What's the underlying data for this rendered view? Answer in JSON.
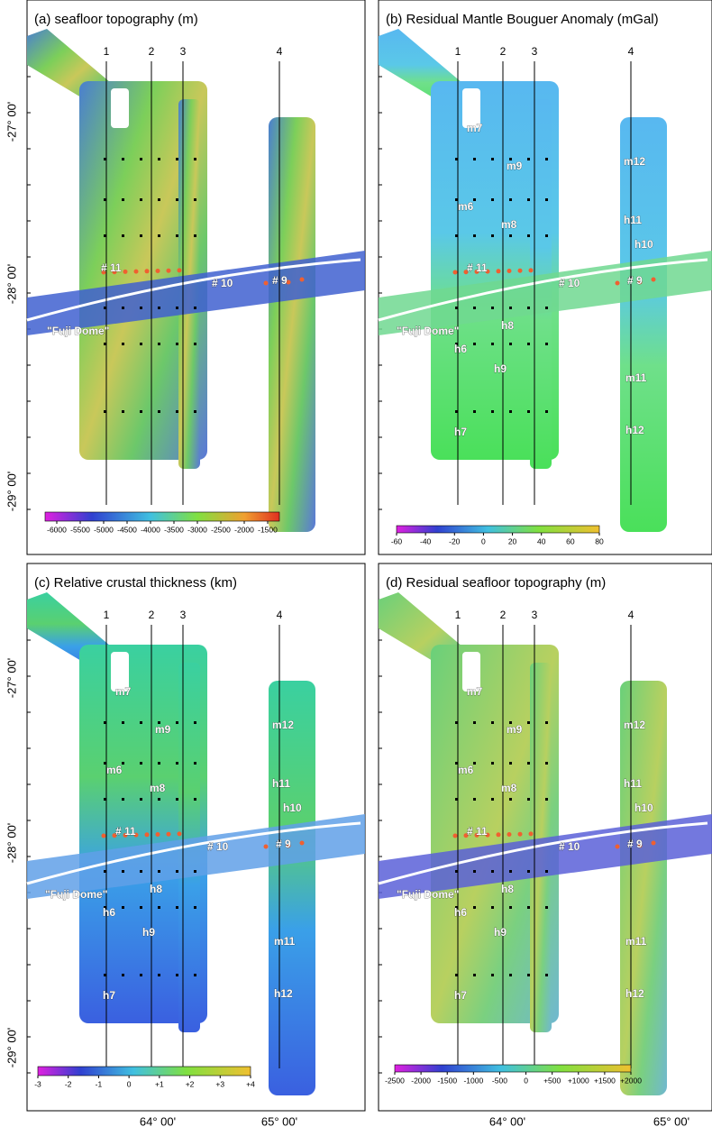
{
  "panels": [
    {
      "title": "(a)  seafloor topography (m)",
      "profiles": [
        "1",
        "2",
        "3",
        "4"
      ],
      "features": [
        "# 11",
        "# 10",
        "# 9",
        "\"Fuji Dome\""
      ],
      "colorbar_ticks": [
        -6000,
        -5500,
        -5000,
        -4500,
        -4000,
        -3500,
        -3000,
        -2500,
        -2000,
        -1500
      ]
    },
    {
      "title": "(b)  Residual Mantle Bouguer Anomaly (mGal)",
      "profiles": [
        "1",
        "2",
        "3",
        "4"
      ],
      "features": [
        "m7",
        "m9",
        "m12",
        "m6",
        "m8",
        "h11",
        "h10",
        "# 11",
        "# 10",
        "# 9",
        "\"Fuji Dome\"",
        "h8",
        "h6",
        "h9",
        "m11",
        "h7",
        "h12"
      ],
      "colorbar_ticks": [
        -60,
        -40,
        -20,
        0,
        20,
        40,
        60,
        80
      ]
    },
    {
      "title": "(c)  Relative crustal thickness (km)",
      "profiles": [
        "1",
        "2",
        "3",
        "4"
      ],
      "features": [
        "m7",
        "m9",
        "m12",
        "m6",
        "m8",
        "h11",
        "h10",
        "# 11",
        "# 10",
        "# 9",
        "\"Fuji Dome\"",
        "h8",
        "h6",
        "h9",
        "m11",
        "h7",
        "h12"
      ],
      "colorbar_ticks": [
        -3,
        -2,
        -1,
        0,
        {
          "value": 1,
          "label": "+1"
        },
        {
          "value": 2,
          "label": "+2"
        },
        {
          "value": 3,
          "label": "+3"
        },
        {
          "value": 4,
          "label": "+4"
        }
      ]
    },
    {
      "title": "(d)  Residual seafloor topography (m)",
      "profiles": [
        "1",
        "2",
        "3",
        "4"
      ],
      "features": [
        "m7",
        "m9",
        "m12",
        "m6",
        "m8",
        "h11",
        "h10",
        "# 11",
        "# 10",
        "# 9",
        "\"Fuji Dome\"",
        "h8",
        "h6",
        "h9",
        "m11",
        "h7",
        "h12"
      ],
      "colorbar_ticks": [
        -2500,
        -2000,
        -1500,
        -1000,
        -500,
        0,
        {
          "value": 500,
          "label": "+500"
        },
        {
          "value": 1000,
          "label": "+1000"
        },
        {
          "value": 1500,
          "label": "+1500"
        },
        {
          "value": 2000,
          "label": "+2000"
        }
      ]
    }
  ],
  "latitude_labels": [
    "-27° 00'",
    "-28° 00'",
    "-29° 00'"
  ],
  "longitude_labels": [
    "64° 00'",
    "65° 00'"
  ]
}
